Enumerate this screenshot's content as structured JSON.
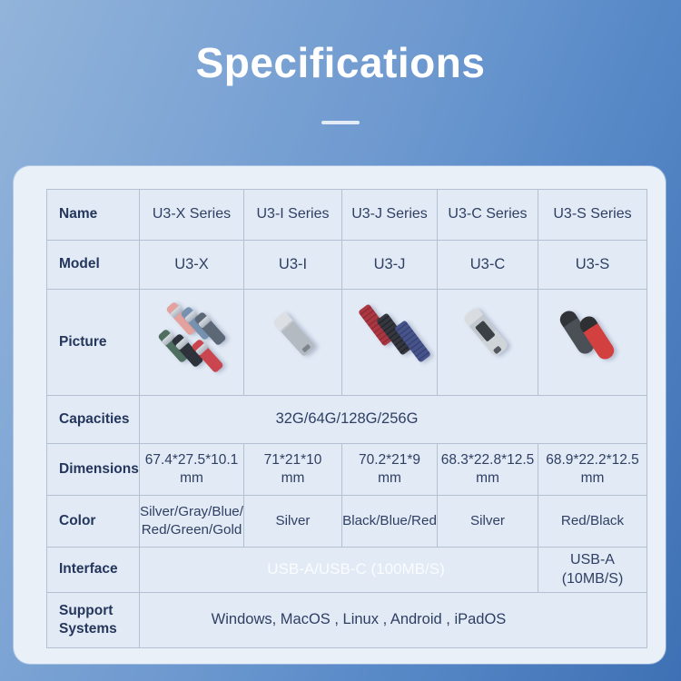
{
  "header": {
    "title": "Specifications"
  },
  "table": {
    "row_labels": {
      "name": "Name",
      "model": "Model",
      "picture": "Picture",
      "capacities": "Capacities",
      "dimensions": "Dimensions",
      "color": "Color",
      "interface": "Interface",
      "support": "Support Systems"
    },
    "series": [
      {
        "name": "U3-X Series",
        "model": "U3-X",
        "picture_icon": "u3x-six-drives-image",
        "dimension": "67.4*27.5*10.1",
        "dimension_unit": "mm",
        "color_line1": "Silver/Gray/Blue/",
        "color_line2": "Red/Green/Gold"
      },
      {
        "name": "U3-I Series",
        "model": "U3-I",
        "picture_icon": "u3i-silver-drive-image",
        "dimension": "71*21*10",
        "dimension_unit": "mm",
        "color_line1": "Silver",
        "color_line2": ""
      },
      {
        "name": "U3-J Series",
        "model": "U3-J",
        "picture_icon": "u3j-three-drives-image",
        "dimension": "70.2*21*9",
        "dimension_unit": "mm",
        "color_line1": "Black/Blue/Red",
        "color_line2": ""
      },
      {
        "name": "U3-C Series",
        "model": "U3-C",
        "picture_icon": "u3c-silver-drive-image",
        "dimension": "68.3*22.8*12.5",
        "dimension_unit": "mm",
        "color_line1": "Silver",
        "color_line2": ""
      },
      {
        "name": "U3-S Series",
        "model": "U3-S",
        "picture_icon": "u3s-two-drives-image",
        "dimension": "68.9*22.2*12.5",
        "dimension_unit": "mm",
        "color_line1": "Red/Black",
        "color_line2": ""
      }
    ],
    "capacities_value": "32G/64G/128G/256G",
    "interface_shared_value": "USB-A/USB-C (100MB/S)",
    "interface_last_value": "USB-A (10MB/S)",
    "support_value": "Windows, MacOS , Linux , Android ,  iPadOS"
  },
  "colors": {
    "background_top": "#92b4da",
    "background_bottom": "#3e70b5",
    "card_background": "#eaf0f8",
    "cell_background": "#e2eaf5",
    "table_border": "#b3c0d2",
    "text_navy": "#2e3f63",
    "title_white": "#ffffff",
    "faint_interface_text": "rgba(255,255,255,0.85)"
  }
}
